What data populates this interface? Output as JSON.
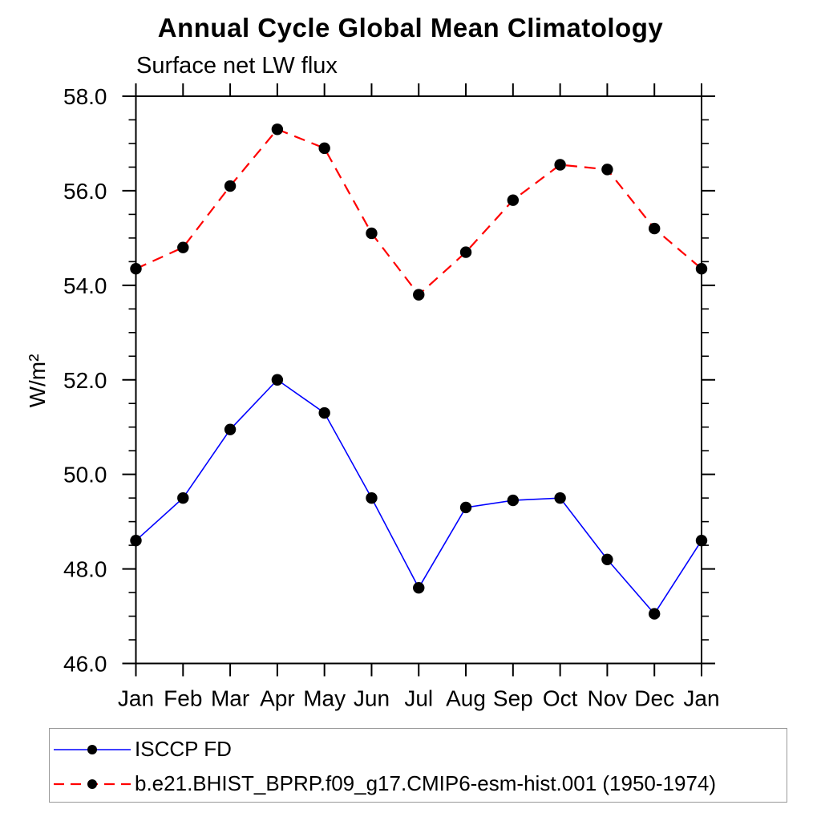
{
  "chart_data": {
    "type": "line",
    "title": "Annual Cycle Global Mean Climatology",
    "subtitle": "Surface net LW flux",
    "ylabel": "W/m²",
    "categories": [
      "Jan",
      "Feb",
      "Mar",
      "Apr",
      "May",
      "Jun",
      "Jul",
      "Aug",
      "Sep",
      "Oct",
      "Nov",
      "Dec",
      "Jan"
    ],
    "ylim": [
      46.0,
      58.0
    ],
    "ytick_major_step": 2.0,
    "ytick_minor_step": 0.5,
    "ytick_labels": [
      "58.0",
      "56.0",
      "54.0",
      "52.0",
      "50.0",
      "48.0",
      "46.0"
    ],
    "grid": false,
    "legend_position": "bottom-left",
    "axis_color": "#000000",
    "background_color": "#ffffff",
    "series": [
      {
        "name": "ISCCP FD",
        "line_color": "#0000ff",
        "line_style": "solid",
        "marker": "filled-circle",
        "marker_color": "#000000",
        "values": [
          48.6,
          49.5,
          50.95,
          52.0,
          51.3,
          49.5,
          47.6,
          49.3,
          49.45,
          49.5,
          48.2,
          47.05,
          48.6
        ]
      },
      {
        "name": "b.e21.BHIST_BPRP.f09_g17.CMIP6-esm-hist.001 (1950-1974)",
        "line_color": "#ff0000",
        "line_style": "dashed",
        "marker": "filled-circle",
        "marker_color": "#000000",
        "values": [
          54.35,
          54.8,
          56.1,
          57.3,
          56.9,
          55.1,
          53.8,
          54.7,
          55.8,
          56.55,
          56.45,
          55.2,
          54.35
        ]
      }
    ]
  }
}
